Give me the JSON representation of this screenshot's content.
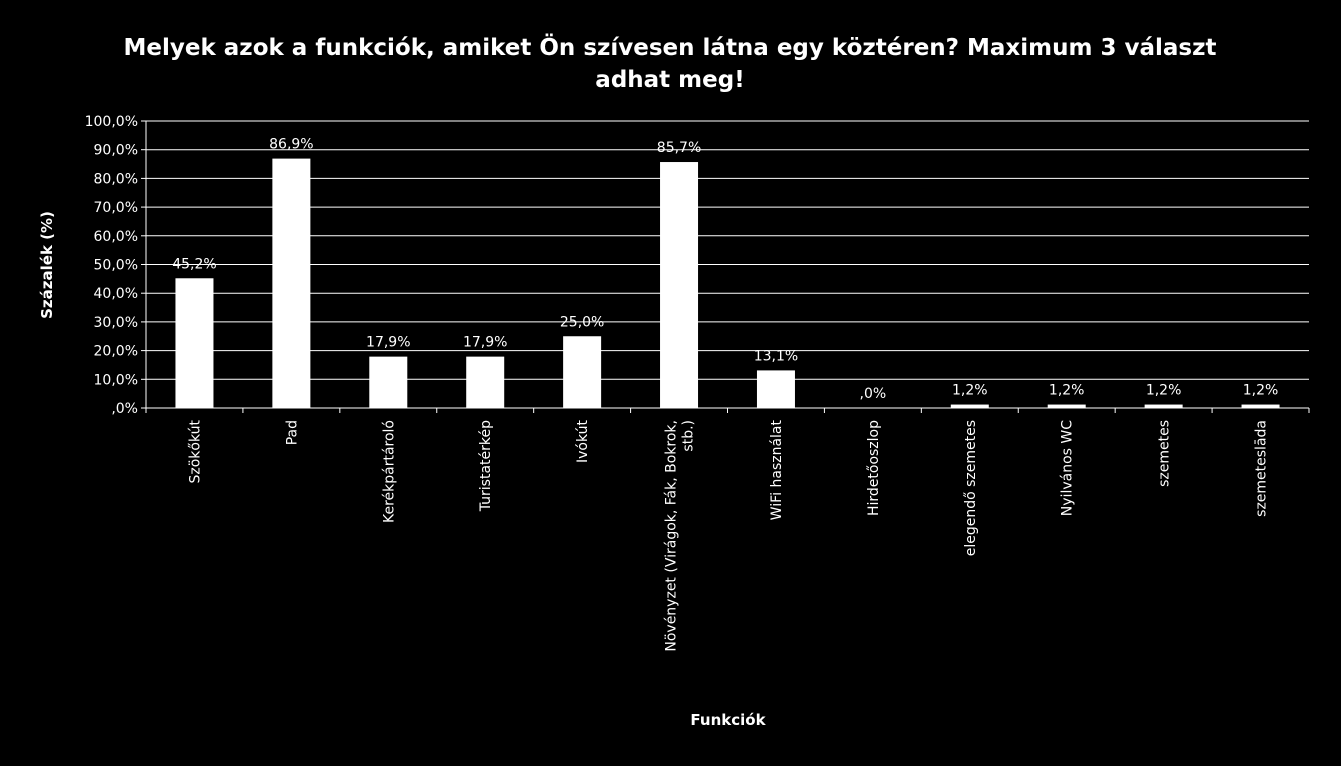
{
  "chart_data": {
    "type": "bar",
    "title_lines": [
      "Melyek azok a funkciók, amiket Ön szívesen látna egy köztéren? Maximum 3 választ",
      "adhat meg!"
    ],
    "xlabel": "Funkciók",
    "ylabel": "Százalék (%)",
    "ylim": [
      0,
      100
    ],
    "y_ticks": [
      ",0%",
      "10,0%",
      "20,0%",
      "30,0%",
      "40,0%",
      "50,0%",
      "60,0%",
      "70,0%",
      "80,0%",
      "90,0%",
      "100,0%"
    ],
    "categories": [
      [
        "Szökőkút"
      ],
      [
        "Pad"
      ],
      [
        "Kerékpártároló"
      ],
      [
        "Turistatérkép"
      ],
      [
        "Ivókút"
      ],
      [
        "Növényzet (Virágok, Fák, Bokrok,",
        "stb.)"
      ],
      [
        "WiFi használat"
      ],
      [
        "Hirdetőoszlop"
      ],
      [
        "elegendő szemetes"
      ],
      [
        "Nyilvános WC"
      ],
      [
        "szemetes"
      ],
      [
        "szemeteslāda"
      ]
    ],
    "values": [
      45.2,
      86.9,
      17.9,
      17.9,
      25.0,
      85.7,
      13.1,
      0.0,
      1.2,
      1.2,
      1.2,
      1.2
    ],
    "value_labels": [
      "45,2%",
      "86,9%",
      "17,9%",
      "17,9%",
      "25,0%",
      "85,7%",
      "13,1%",
      ",0%",
      "1,2%",
      "1,2%",
      "1,2%",
      "1,2%"
    ],
    "grid": true,
    "bar_color": "#ffffff",
    "background": "#000000"
  }
}
